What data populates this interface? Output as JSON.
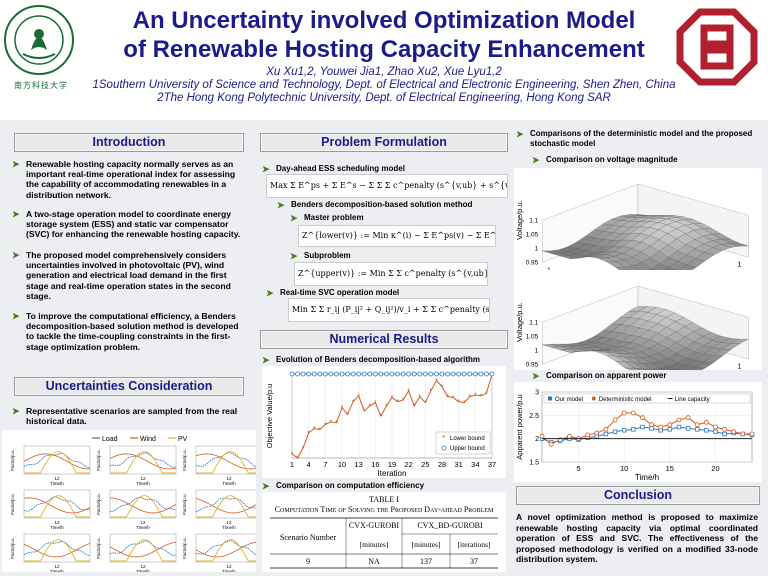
{
  "header": {
    "title_line1": "An Uncertainty involved Optimization Model",
    "title_line2": "of Renewable Hosting Capacity Enhancement",
    "authors": "Xu Xu1,2, Youwei Jia1, Zhao Xu2, Xue Lyu1,2",
    "affil1": "1Southern University of Science and Technology, Dept. of Electrical and Electronic Engineering, Shen Zhen, China",
    "affil2": "2The Hong Kong Polytechnic University, Dept. of Electrical Engineering, Hong Kong SAR",
    "left_logo_text": "南方科技大学",
    "colors": {
      "title": "#1b1b8a",
      "logo_green": "#1a6a38",
      "logo_red": "#b0202e"
    }
  },
  "introduction": {
    "heading": "Introduction",
    "bullets": [
      "Renewable hosting capacity normally serves as an important real-time operational index for assessing the capability of accommodating renewables in a distribution network.",
      "A two-stage operation model to coordinate energy storage system (ESS) and static var compensator (SVC) for enhancing the renewable hosting capacity.",
      "The proposed model comprehensively considers uncertainties involved in photovoltaic (PV), wind generation and electrical load demand in the first stage and real-time operation states in the second stage.",
      "To improve the computational efficiency, a Benders decomposition-based solution method is developed to tackle the time-coupling constraints in the first-stage optimization problem."
    ]
  },
  "uncertainties": {
    "heading": "Uncertainties Consideration",
    "bullet": "Representative scenarios are sampled from the real historical data.",
    "legend": [
      "Load",
      "Wind",
      "PV"
    ],
    "ylabel": "Factor/p.u.",
    "xlabel": "Time/h",
    "xtick": "12",
    "panel_count": 9
  },
  "problem": {
    "heading": "Problem Formulation",
    "item1": "Day-ahead ESS scheduling model",
    "item2": "Benders decomposition-based solution method",
    "item3": "Master problem",
    "item4": "Subproblem",
    "item5": "Real-time SVC operation model",
    "eq1": "Max  Σ E^ps + Σ E^s − Σ Σ Σ c^penalty (s^{v,ub} + s^{v,lb} + s^p)",
    "eq2": "Z^{lower(v)} := Min κ^(i) − Σ E^ps(v) − Σ E^s(v)",
    "eq3": "Z^{upper(v)} := Min Σ Σ c^penalty (s^{v,ub} + s^{v,lb} + s^p)",
    "eq4": "Min Σ Σ r_ij (P_ij² + Q_ij²)/v_i + Σ Σ c^penalty (s^{v,ub} + s^{v,lb} + s^p)"
  },
  "numerical": {
    "heading": "Numerical Results",
    "item1": "Evolution of Benders decomposition-based algorithm",
    "item2": "Comparison on computation efficiency",
    "table_title_1": "TABLE I",
    "table_title_2": "Computation Time of Solving the Proposed Day-ahead Problem",
    "table": {
      "headers": [
        "Scenario Number",
        "CVX-GUROBI",
        "CVX_BD-GUROBI"
      ],
      "units": [
        "",
        "[minutes]",
        "[minutes]",
        "[iterations]"
      ],
      "row": [
        "9",
        "NA",
        "137",
        "37"
      ]
    }
  },
  "comparisons": {
    "item1": "Comparisons of the deterministic model and the proposed stochastic model",
    "item2": "Comparison on voltage magnitude",
    "item3": "Comparison on apparent power",
    "surface_labels": {
      "zlabel": "Voltage/p.u.",
      "xlabel": "Node",
      "ylabel": "Time/h",
      "zticks": [
        "0.95",
        "1",
        "1.05",
        "1.1"
      ],
      "node_ticks": [
        "30",
        "20",
        "10",
        "1"
      ],
      "time_ticks": [
        "1",
        "13",
        "24"
      ]
    }
  },
  "conclusion": {
    "heading": "Conclusion",
    "text": "A novel optimization method is proposed to maximize renewable hosting capacity via optimal coordinated operation of ESS and SVC. The effectiveness of the proposed methodology is verified on a modified 33-node distribution system."
  },
  "chart_data": [
    {
      "type": "line",
      "title": "",
      "xlabel": "Iteration",
      "ylabel": "Objective Value/p.u",
      "x_ticks": [
        1,
        4,
        7,
        10,
        13,
        16,
        19,
        22,
        25,
        28,
        31,
        34,
        37
      ],
      "xlim": [
        1,
        37
      ],
      "ylim": [
        0,
        1
      ],
      "grid": true,
      "legend_position": "lower-right",
      "series": [
        {
          "name": "Lower bound",
          "color": "#d45a1f",
          "marker": "asterisk",
          "x": [
            1,
            2,
            3,
            4,
            5,
            6,
            7,
            8,
            9,
            10,
            11,
            12,
            13,
            14,
            15,
            16,
            17,
            18,
            19,
            20,
            21,
            22,
            23,
            24,
            25,
            26,
            27,
            28,
            29,
            30,
            31,
            32,
            33,
            34,
            35,
            36,
            37
          ],
          "values": [
            0.05,
            0.0,
            0.12,
            0.3,
            0.35,
            0.34,
            0.4,
            0.43,
            0.42,
            0.6,
            0.52,
            0.67,
            0.74,
            0.56,
            0.62,
            0.66,
            0.5,
            0.62,
            0.72,
            0.67,
            0.69,
            0.8,
            0.62,
            0.73,
            0.66,
            0.8,
            0.92,
            0.85,
            0.73,
            0.72,
            0.67,
            0.66,
            0.73,
            0.75,
            0.74,
            0.77,
            1.0
          ]
        },
        {
          "name": "Upper bound",
          "color": "#2f78c4",
          "marker": "circle",
          "x": [
            1,
            2,
            3,
            4,
            5,
            6,
            7,
            8,
            9,
            10,
            11,
            12,
            13,
            14,
            15,
            16,
            17,
            18,
            19,
            20,
            21,
            22,
            23,
            24,
            25,
            26,
            27,
            28,
            29,
            30,
            31,
            32,
            33,
            34,
            35,
            36,
            37
          ],
          "values": [
            1,
            1,
            1,
            1,
            1,
            1,
            1,
            1,
            1,
            1,
            1,
            1,
            1,
            1,
            1,
            1,
            1,
            1,
            1,
            1,
            1,
            1,
            1,
            1,
            1,
            1,
            1,
            1,
            1,
            1,
            1,
            1,
            1,
            1,
            1,
            1,
            1
          ]
        }
      ]
    },
    {
      "type": "line",
      "title": "",
      "xlabel": "Time/h",
      "ylabel": "Apparent power/p.u",
      "x_ticks": [
        5,
        10,
        15,
        20
      ],
      "y_ticks": [
        1.5,
        2,
        2.5,
        3
      ],
      "xlim": [
        1,
        24
      ],
      "ylim": [
        1.5,
        3
      ],
      "grid": true,
      "legend_position": "top",
      "series": [
        {
          "name": "Our model",
          "color": "#2f78c4",
          "marker": "square",
          "x": [
            1,
            2,
            3,
            4,
            5,
            6,
            7,
            8,
            9,
            10,
            11,
            12,
            13,
            14,
            15,
            16,
            17,
            18,
            19,
            20,
            21,
            22,
            23,
            24
          ],
          "values": [
            2.0,
            1.92,
            1.95,
            2.0,
            1.98,
            2.02,
            2.05,
            2.1,
            2.15,
            2.18,
            2.2,
            2.25,
            2.22,
            2.18,
            2.2,
            2.25,
            2.22,
            2.2,
            2.18,
            2.15,
            2.1,
            2.12,
            2.1,
            2.08
          ]
        },
        {
          "name": "Deterministic model",
          "color": "#d45a1f",
          "marker": "circle",
          "x": [
            1,
            2,
            3,
            4,
            5,
            6,
            7,
            8,
            9,
            10,
            11,
            12,
            13,
            14,
            15,
            16,
            17,
            18,
            19,
            20,
            21,
            22,
            23,
            24
          ],
          "values": [
            2.05,
            1.88,
            1.98,
            2.05,
            2.0,
            2.08,
            2.12,
            2.2,
            2.4,
            2.55,
            2.55,
            2.45,
            2.3,
            2.25,
            2.3,
            2.4,
            2.45,
            2.3,
            2.35,
            2.25,
            2.2,
            2.15,
            2.1,
            2.1
          ]
        },
        {
          "name": "Line capacity",
          "color": "#222222",
          "marker": "none",
          "x": [
            1,
            24
          ],
          "values": [
            2.0,
            2.0
          ]
        }
      ]
    }
  ]
}
